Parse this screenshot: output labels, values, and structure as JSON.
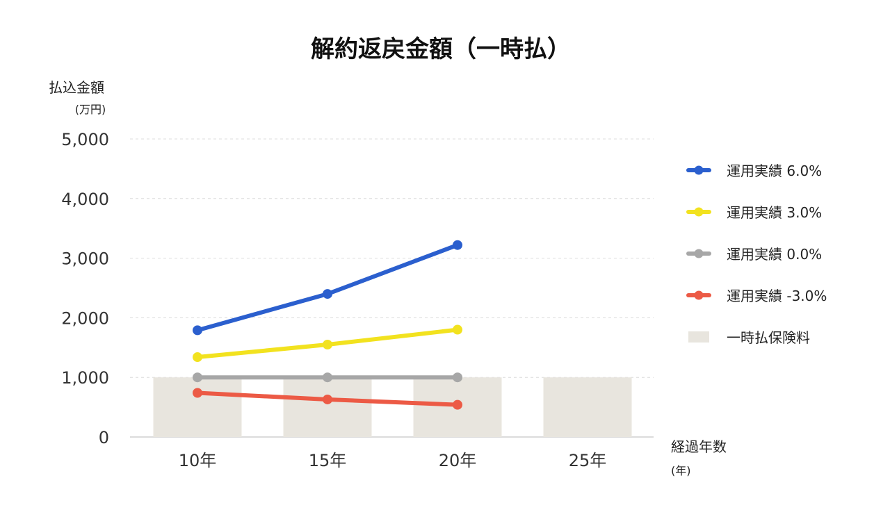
{
  "chart_data": {
    "type": "bar+line",
    "title": "解約返戻金額（一時払）",
    "ylabel": "払込金額",
    "yunit": "(万円)",
    "xlabel": "経過年数",
    "xunit": "(年)",
    "ylim": [
      0,
      5000
    ],
    "yticks": [
      0,
      1000,
      2000,
      3000,
      4000,
      5000
    ],
    "ytick_labels": [
      "0",
      "1,000",
      "2,000",
      "3,000",
      "4,000",
      "5,000"
    ],
    "categories": [
      "10年",
      "15年",
      "20年",
      "25年"
    ],
    "grid": true,
    "legend_position": "right",
    "bars": {
      "name": "一時払保険料",
      "color": "#e8e5de",
      "values": [
        1000,
        1000,
        1000,
        1000
      ]
    },
    "series": [
      {
        "name": "運用実績 6.0%",
        "color": "#2b5fce",
        "values": [
          1790,
          2400,
          3220,
          null
        ]
      },
      {
        "name": "運用実績 3.0%",
        "color": "#f2e21f",
        "values": [
          1340,
          1550,
          1800,
          null
        ]
      },
      {
        "name": "運用実績 0.0%",
        "color": "#a7a7a7",
        "values": [
          1000,
          1000,
          1000,
          null
        ]
      },
      {
        "name": "運用実績 -3.0%",
        "color": "#ec5a45",
        "values": [
          740,
          630,
          540,
          null
        ]
      }
    ]
  }
}
